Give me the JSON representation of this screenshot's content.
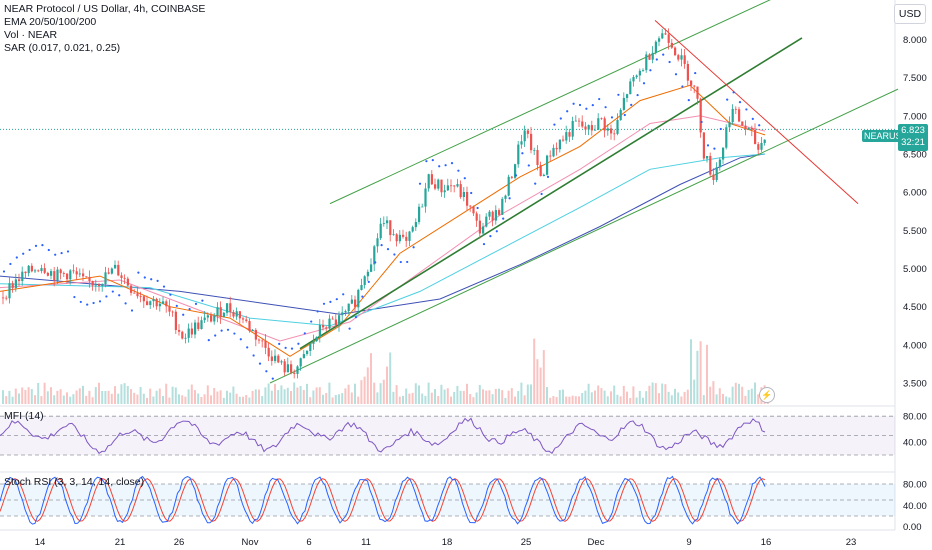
{
  "legend": {
    "title": "NEAR Protocol / US Dollar, 4h, COINBASE",
    "ema": "EMA 20/50/100/200",
    "vol": "Vol · NEAR",
    "sar": "SAR (0.017, 0.021, 0.25)"
  },
  "mfi_label": "MFI (14)",
  "stoch_label": "Stoch RSI (3, 3, 14, 14, close)",
  "currency": "USD",
  "last_price": {
    "symbol": "NEARUSD",
    "value": "6.823",
    "countdown": "32:21"
  },
  "colors": {
    "up": "#26a69a",
    "down": "#ef5350",
    "ema20": "#ef6c00",
    "ema50": "#f48fb1",
    "ema100": "#4dd0e1",
    "ema200": "#3f51b5",
    "sar": "#2962ff",
    "channel": "#43a047",
    "downtrend": "#e53935",
    "mfi": "#7e57c2",
    "stoch_k": "#2962ff",
    "stoch_d": "#f44336"
  },
  "chart_data": {
    "type": "candlestick",
    "price_axis": {
      "min": 3.3,
      "max": 8.3,
      "ticks": [
        "8.000",
        "7.500",
        "7.000",
        "6.500",
        "6.000",
        "5.500",
        "5.000",
        "4.500",
        "4.000",
        "3.500"
      ]
    },
    "time_axis": {
      "labels": [
        "14",
        "21",
        "26",
        "Nov",
        "6",
        "11",
        "18",
        "25",
        "Dec",
        "9",
        "16",
        "23"
      ]
    },
    "mfi_axis": {
      "ticks": [
        "80.00",
        "40.00"
      ],
      "bands": [
        80,
        50,
        20
      ]
    },
    "stoch_axis": {
      "ticks": [
        "80.00",
        "40.00",
        "0.00"
      ],
      "bands": [
        80,
        50,
        20
      ]
    },
    "price_path": [
      [
        0,
        4.62
      ],
      [
        15,
        4.85
      ],
      [
        28,
        4.95
      ],
      [
        40,
        5.05
      ],
      [
        55,
        4.9
      ],
      [
        70,
        4.95
      ],
      [
        85,
        4.8
      ],
      [
        100,
        4.85
      ],
      [
        115,
        5.0
      ],
      [
        130,
        4.75
      ],
      [
        145,
        4.6
      ],
      [
        160,
        4.55
      ],
      [
        172,
        4.35
      ],
      [
        182,
        4.1
      ],
      [
        195,
        4.25
      ],
      [
        210,
        4.35
      ],
      [
        225,
        4.5
      ],
      [
        238,
        4.4
      ],
      [
        250,
        4.2
      ],
      [
        262,
        4.0
      ],
      [
        272,
        3.85
      ],
      [
        280,
        3.72
      ],
      [
        290,
        3.65
      ],
      [
        300,
        3.75
      ],
      [
        310,
        4.0
      ],
      [
        322,
        4.25
      ],
      [
        335,
        4.3
      ],
      [
        345,
        4.4
      ],
      [
        355,
        4.6
      ],
      [
        362,
        4.9
      ],
      [
        372,
        5.2
      ],
      [
        380,
        5.6
      ],
      [
        392,
        5.5
      ],
      [
        405,
        5.3
      ],
      [
        415,
        5.6
      ],
      [
        428,
        6.2
      ],
      [
        440,
        6.05
      ],
      [
        452,
        6.1
      ],
      [
        465,
        5.9
      ],
      [
        478,
        5.5
      ],
      [
        490,
        5.7
      ],
      [
        500,
        5.8
      ],
      [
        512,
        6.3
      ],
      [
        522,
        6.8
      ],
      [
        530,
        6.6
      ],
      [
        540,
        6.2
      ],
      [
        550,
        6.55
      ],
      [
        562,
        6.7
      ],
      [
        575,
        6.9
      ],
      [
        588,
        6.8
      ],
      [
        600,
        6.95
      ],
      [
        612,
        6.7
      ],
      [
        625,
        7.3
      ],
      [
        640,
        7.6
      ],
      [
        655,
        8.0
      ],
      [
        665,
        8.1
      ],
      [
        675,
        7.85
      ],
      [
        685,
        7.6
      ],
      [
        695,
        7.3
      ],
      [
        703,
        6.5
      ],
      [
        712,
        6.2
      ],
      [
        720,
        6.5
      ],
      [
        730,
        7.1
      ],
      [
        740,
        6.9
      ],
      [
        750,
        6.75
      ],
      [
        758,
        6.55
      ],
      [
        765,
        6.82
      ]
    ],
    "ema20": [
      [
        0,
        4.7
      ],
      [
        100,
        4.9
      ],
      [
        170,
        4.5
      ],
      [
        230,
        4.35
      ],
      [
        290,
        3.85
      ],
      [
        340,
        4.25
      ],
      [
        400,
        5.2
      ],
      [
        460,
        5.7
      ],
      [
        520,
        6.2
      ],
      [
        580,
        6.6
      ],
      [
        640,
        7.2
      ],
      [
        690,
        7.4
      ],
      [
        730,
        6.9
      ],
      [
        765,
        6.75
      ]
    ],
    "ema50": [
      [
        0,
        4.75
      ],
      [
        120,
        4.85
      ],
      [
        200,
        4.45
      ],
      [
        280,
        4.05
      ],
      [
        350,
        4.3
      ],
      [
        420,
        4.95
      ],
      [
        500,
        5.7
      ],
      [
        580,
        6.3
      ],
      [
        650,
        6.9
      ],
      [
        700,
        7.0
      ],
      [
        765,
        6.8
      ]
    ],
    "ema100": [
      [
        0,
        4.8
      ],
      [
        150,
        4.75
      ],
      [
        250,
        4.35
      ],
      [
        330,
        4.25
      ],
      [
        420,
        4.7
      ],
      [
        500,
        5.25
      ],
      [
        580,
        5.8
      ],
      [
        650,
        6.3
      ],
      [
        720,
        6.45
      ],
      [
        765,
        6.5
      ]
    ],
    "ema200": [
      [
        0,
        4.9
      ],
      [
        180,
        4.7
      ],
      [
        260,
        4.55
      ],
      [
        340,
        4.4
      ],
      [
        440,
        4.6
      ],
      [
        520,
        5.05
      ],
      [
        600,
        5.55
      ],
      [
        680,
        6.1
      ],
      [
        740,
        6.45
      ],
      [
        765,
        6.5
      ]
    ],
    "channel_upper": [
      [
        330,
        5.85
      ],
      [
        775,
        8.55
      ]
    ],
    "channel_lower": [
      [
        270,
        3.5
      ],
      [
        898,
        7.35
      ]
    ],
    "midline": [
      [
        300,
        3.95
      ],
      [
        802,
        8.02
      ]
    ],
    "downtrend": [
      [
        655,
        8.25
      ],
      [
        858,
        5.85
      ]
    ],
    "last_price_line": 6.823
  }
}
